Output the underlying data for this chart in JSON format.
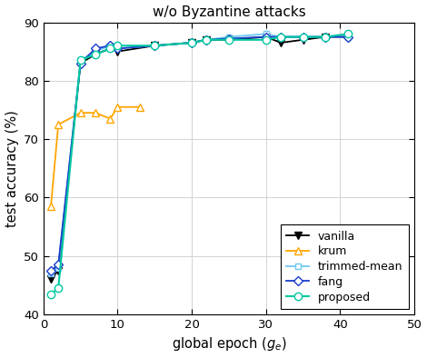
{
  "title": "w/o Byzantine attacks",
  "xlabel": "global epoch ($g_e$)",
  "ylabel": "test accuracy (%)",
  "xlim": [
    0,
    50
  ],
  "ylim": [
    40,
    90
  ],
  "yticks": [
    40,
    50,
    60,
    70,
    80,
    90
  ],
  "xticks": [
    0,
    10,
    20,
    30,
    40,
    50
  ],
  "vanilla": {
    "x": [
      1,
      2,
      5,
      7,
      9,
      10,
      15,
      20,
      22,
      25,
      30,
      32,
      35,
      38,
      41
    ],
    "y": [
      46.0,
      47.5,
      83.0,
      84.5,
      85.5,
      85.0,
      86.0,
      86.5,
      87.0,
      87.0,
      87.5,
      86.5,
      87.0,
      87.5,
      87.5
    ],
    "color": "#000000",
    "marker": "v",
    "markersize": 6,
    "linewidth": 1.3,
    "label": "vanilla",
    "filled": true
  },
  "krum": {
    "x": [
      1,
      2,
      5,
      7,
      9,
      10,
      13
    ],
    "y": [
      58.5,
      72.5,
      74.5,
      74.5,
      73.5,
      75.5,
      75.5
    ],
    "color": "#FFA500",
    "marker": "^",
    "markersize": 6,
    "linewidth": 1.3,
    "label": "krum",
    "filled": false
  },
  "trimmed_mean": {
    "x": [
      1,
      2,
      5,
      7,
      9,
      10,
      15,
      20,
      22,
      25,
      30,
      32,
      35,
      38,
      41
    ],
    "y": [
      47.0,
      48.0,
      83.5,
      85.0,
      86.0,
      85.5,
      86.0,
      86.5,
      87.0,
      87.5,
      88.0,
      87.5,
      87.5,
      87.5,
      87.5
    ],
    "color": "#6FC8F0",
    "marker": "s",
    "markersize": 5,
    "linewidth": 1.3,
    "label": "trimmed-mean",
    "filled": false
  },
  "fang": {
    "x": [
      1,
      2,
      5,
      7,
      9,
      10,
      15,
      20,
      22,
      25,
      30,
      32,
      35,
      38,
      41
    ],
    "y": [
      47.5,
      48.5,
      83.0,
      85.5,
      86.0,
      85.5,
      86.0,
      86.5,
      87.0,
      87.2,
      87.5,
      87.5,
      87.5,
      87.5,
      87.5
    ],
    "color": "#1a3dcc",
    "marker": "D",
    "markersize": 5,
    "linewidth": 1.3,
    "label": "fang",
    "filled": false
  },
  "proposed": {
    "x": [
      1,
      2,
      5,
      7,
      9,
      10,
      15,
      20,
      22,
      25,
      30,
      32,
      35,
      38,
      41
    ],
    "y": [
      43.5,
      44.5,
      83.5,
      84.5,
      85.5,
      86.0,
      86.0,
      86.5,
      87.0,
      87.0,
      87.0,
      87.5,
      87.5,
      87.5,
      88.0
    ],
    "color": "#00C8A0",
    "marker": "o",
    "markersize": 6,
    "linewidth": 1.5,
    "label": "proposed",
    "filled": false
  },
  "background_color": "#ffffff",
  "grid_color": "#d3d3d3"
}
